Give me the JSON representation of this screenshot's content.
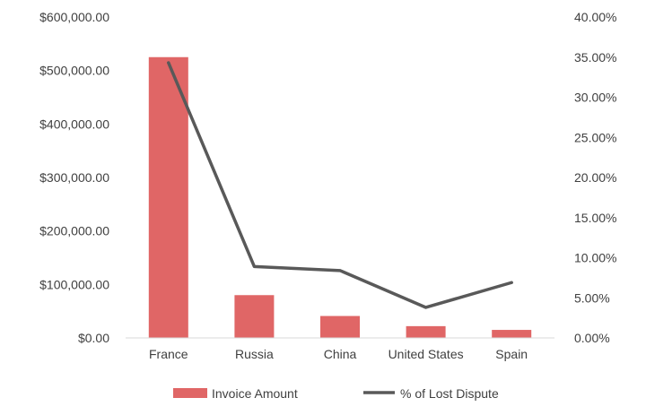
{
  "chart_data": {
    "type": "bar",
    "categories": [
      "France",
      "Russia",
      "China",
      "United States",
      "Spain"
    ],
    "series": [
      {
        "name": "Invoice Amount",
        "type": "bar",
        "axis": "left",
        "color": "#e06666",
        "values": [
          525000,
          80000,
          41000,
          22000,
          15000
        ]
      },
      {
        "name": "% of Lost Dispute",
        "type": "line",
        "axis": "right",
        "color": "#595959",
        "values": [
          34.3,
          8.9,
          8.4,
          3.8,
          6.9
        ]
      }
    ],
    "y_left": {
      "ylim": [
        0,
        600000
      ],
      "tick_values": [
        0,
        100000,
        200000,
        300000,
        400000,
        500000,
        600000
      ],
      "tick_labels": [
        "$0.00",
        "$100,000.00",
        "$200,000.00",
        "$300,000.00",
        "$400,000.00",
        "$500,000.00",
        "$600,000.00"
      ]
    },
    "y_right": {
      "ylim": [
        0,
        40
      ],
      "tick_values": [
        0,
        5,
        10,
        15,
        20,
        25,
        30,
        35,
        40
      ],
      "tick_labels": [
        "0.00%",
        "5.00%",
        "10.00%",
        "15.00%",
        "20.00%",
        "25.00%",
        "30.00%",
        "35.00%",
        "40.00%"
      ]
    },
    "grid": false,
    "legend_position": "bottom"
  }
}
